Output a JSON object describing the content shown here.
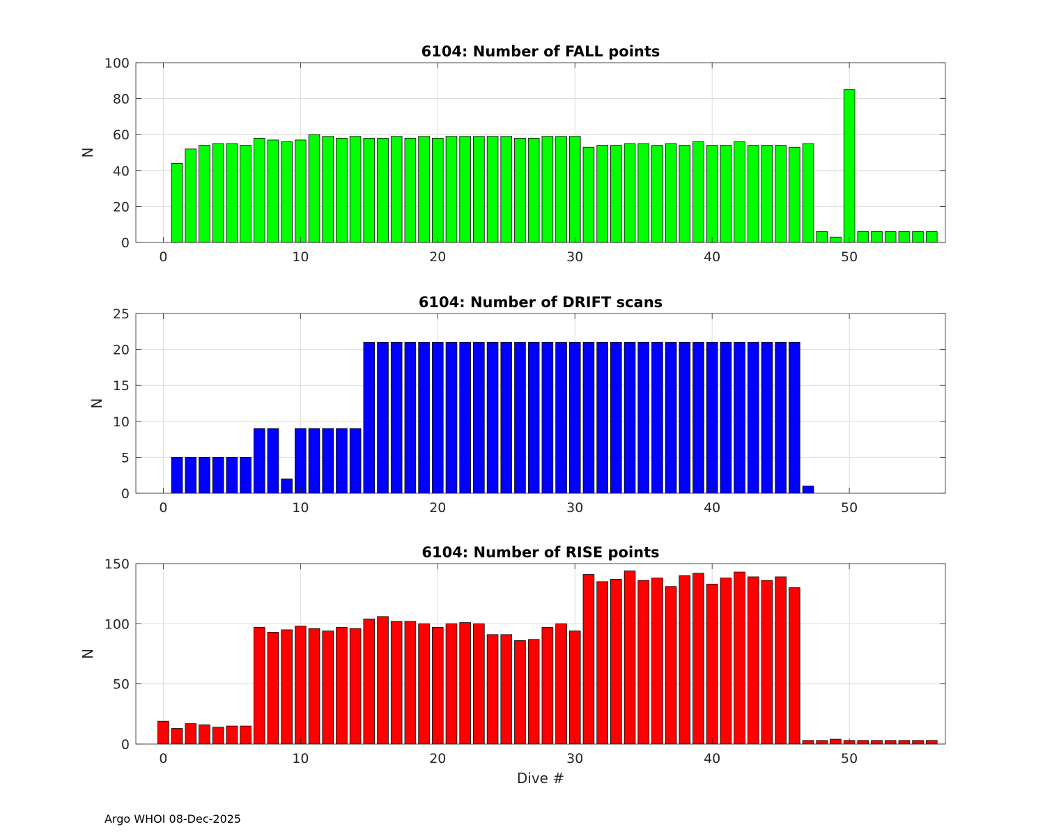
{
  "footer": "Argo WHOI 08-Dec-2025",
  "chart_data": [
    {
      "type": "bar",
      "title": "6104: Number of FALL points",
      "xlabel": "",
      "ylabel": "N",
      "color": "#00ff00",
      "xlim": [
        -2,
        57
      ],
      "ylim": [
        0,
        100
      ],
      "xticks": [
        0,
        10,
        20,
        30,
        40,
        50
      ],
      "yticks": [
        0,
        20,
        40,
        60,
        80,
        100
      ],
      "grid": true,
      "x": [
        0,
        1,
        2,
        3,
        4,
        5,
        6,
        7,
        8,
        9,
        10,
        11,
        12,
        13,
        14,
        15,
        16,
        17,
        18,
        19,
        20,
        21,
        22,
        23,
        24,
        25,
        26,
        27,
        28,
        29,
        30,
        31,
        32,
        33,
        34,
        35,
        36,
        37,
        38,
        39,
        40,
        41,
        42,
        43,
        44,
        45,
        46,
        47,
        48,
        49,
        50,
        51,
        52,
        53,
        54,
        55,
        56
      ],
      "values": [
        0,
        44,
        52,
        54,
        55,
        55,
        54,
        58,
        57,
        56,
        57,
        60,
        59,
        58,
        59,
        58,
        58,
        59,
        58,
        59,
        58,
        59,
        59,
        59,
        59,
        59,
        58,
        58,
        59,
        59,
        59,
        53,
        54,
        54,
        55,
        55,
        54,
        55,
        54,
        56,
        54,
        54,
        56,
        54,
        54,
        54,
        53,
        55,
        6,
        3,
        85,
        6,
        6,
        6,
        6,
        6,
        6
      ]
    },
    {
      "type": "bar",
      "title": "6104: Number of DRIFT scans",
      "xlabel": "",
      "ylabel": "N",
      "color": "#0000ff",
      "xlim": [
        -2,
        57
      ],
      "ylim": [
        0,
        25
      ],
      "xticks": [
        0,
        10,
        20,
        30,
        40,
        50
      ],
      "yticks": [
        0,
        5,
        10,
        15,
        20,
        25
      ],
      "grid": true,
      "x": [
        0,
        1,
        2,
        3,
        4,
        5,
        6,
        7,
        8,
        9,
        10,
        11,
        12,
        13,
        14,
        15,
        16,
        17,
        18,
        19,
        20,
        21,
        22,
        23,
        24,
        25,
        26,
        27,
        28,
        29,
        30,
        31,
        32,
        33,
        34,
        35,
        36,
        37,
        38,
        39,
        40,
        41,
        42,
        43,
        44,
        45,
        46,
        47,
        48,
        49,
        50,
        51,
        52,
        53,
        54,
        55,
        56
      ],
      "values": [
        0,
        5,
        5,
        5,
        5,
        5,
        5,
        9,
        9,
        2,
        9,
        9,
        9,
        9,
        9,
        21,
        21,
        21,
        21,
        21,
        21,
        21,
        21,
        21,
        21,
        21,
        21,
        21,
        21,
        21,
        21,
        21,
        21,
        21,
        21,
        21,
        21,
        21,
        21,
        21,
        21,
        21,
        21,
        21,
        21,
        21,
        21,
        1,
        0,
        0,
        0,
        0,
        0,
        0,
        0,
        0,
        0
      ]
    },
    {
      "type": "bar",
      "title": "6104: Number of RISE points",
      "xlabel": "Dive #",
      "ylabel": "N",
      "color": "#ff0000",
      "xlim": [
        -2,
        57
      ],
      "ylim": [
        0,
        150
      ],
      "xticks": [
        0,
        10,
        20,
        30,
        40,
        50
      ],
      "yticks": [
        0,
        50,
        100,
        150
      ],
      "grid": true,
      "x": [
        0,
        1,
        2,
        3,
        4,
        5,
        6,
        7,
        8,
        9,
        10,
        11,
        12,
        13,
        14,
        15,
        16,
        17,
        18,
        19,
        20,
        21,
        22,
        23,
        24,
        25,
        26,
        27,
        28,
        29,
        30,
        31,
        32,
        33,
        34,
        35,
        36,
        37,
        38,
        39,
        40,
        41,
        42,
        43,
        44,
        45,
        46,
        47,
        48,
        49,
        50,
        51,
        52,
        53,
        54,
        55,
        56
      ],
      "values": [
        19,
        13,
        17,
        16,
        14,
        15,
        15,
        97,
        93,
        95,
        98,
        96,
        94,
        97,
        96,
        104,
        106,
        102,
        102,
        100,
        97,
        100,
        101,
        100,
        91,
        91,
        86,
        87,
        97,
        100,
        94,
        141,
        135,
        137,
        144,
        136,
        138,
        131,
        140,
        142,
        133,
        138,
        143,
        139,
        136,
        139,
        130,
        3,
        3,
        4,
        3,
        3,
        3,
        3,
        3,
        3,
        3
      ]
    }
  ]
}
